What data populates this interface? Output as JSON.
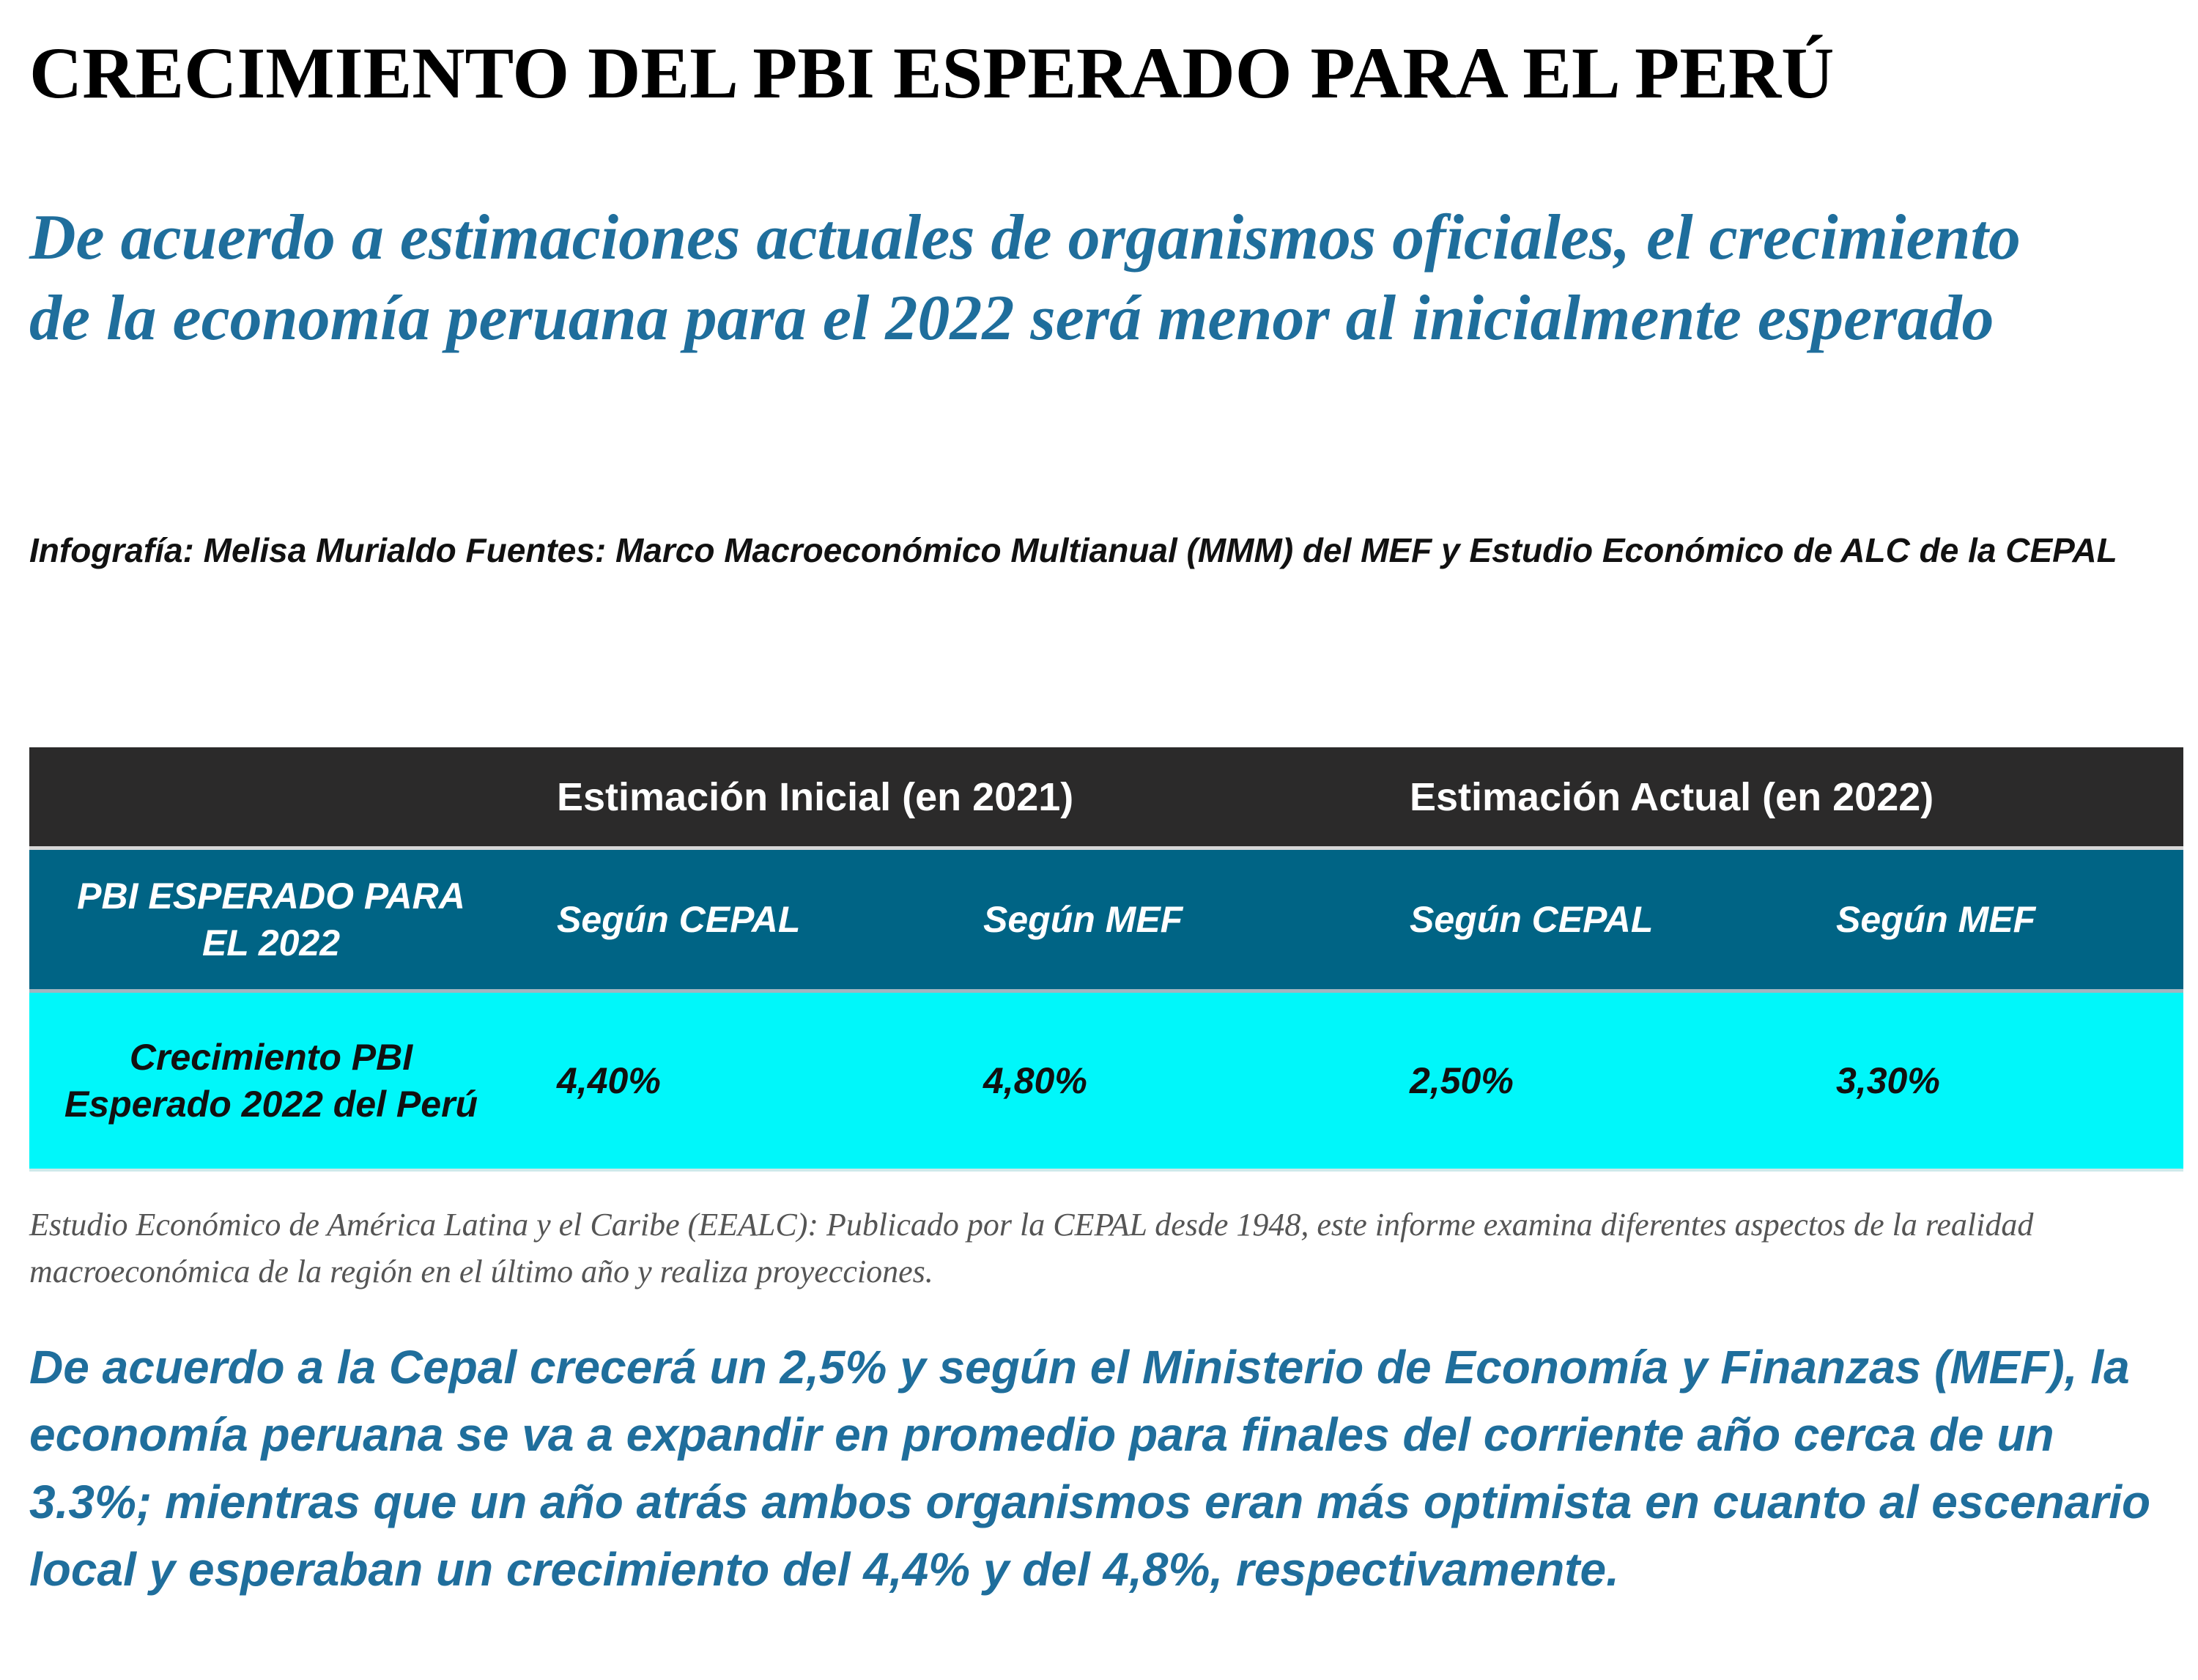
{
  "header": {
    "title": "CRECIMIENTO DEL PBI ESPERADO PARA EL PERÚ",
    "subtitle": "De acuerdo a estimaciones actuales de organismos oficiales, el crecimiento de la economía peruana para el 2022 será menor al inicialmente esperado",
    "credit": "Infografía: Melisa Murialdo Fuentes: Marco Macroeconómico Multianual (MMM) del MEF y Estudio Económico de ALC de la CEPAL"
  },
  "table": {
    "group_headers": [
      "Estimación Inicial (en 2021)",
      "Estimación Actual (en 2022)"
    ],
    "row_label_header": "PBI ESPERADO PARA EL 2022",
    "sub_headers": [
      "Según CEPAL",
      "Según MEF",
      "Según CEPAL",
      "Según MEF"
    ],
    "row_label": "Crecimiento PBI Esperado 2022 del Perú",
    "values": [
      "4,40%",
      "4,80%",
      "2,50%",
      "3,30%"
    ]
  },
  "note": "Estudio Económico de América Latina y el Caribe (EEALC): Publicado por la CEPAL desde 1948, este informe examina diferentes aspectos de la realidad macroeconómica de la región en el último año y realiza proyecciones.",
  "body_text": "De acuerdo a la Cepal crecerá un 2,5% y según el Ministerio de Economía y Finanzas (MEF), la economía peruana se va a expandir en promedio para finales del corriente año cerca de un 3.3%; mientras que un año atrás ambos organismos eran más optimista en cuanto al escenario local y esperaban un crecimiento del 4,4% y del 4,8%, respectivamente.",
  "colors": {
    "title": "#000000",
    "accent_blue": "#1f6e9c",
    "header_dark": "#2b2a2a",
    "subheader_teal": "#006485",
    "data_cyan": "#00f7fa"
  }
}
